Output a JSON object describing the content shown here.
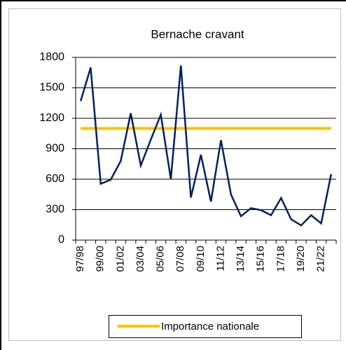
{
  "chart_data": {
    "type": "line",
    "title": "Bernache cravant",
    "categories": [
      "97/98",
      null,
      "99/00",
      null,
      "01/02",
      null,
      "03/04",
      null,
      "05/06",
      null,
      "07/08",
      null,
      "09/10",
      null,
      "11/12",
      null,
      "13/14",
      null,
      "15/16",
      null,
      "17/18",
      null,
      "19/20",
      null,
      "21/22",
      null
    ],
    "series": [
      {
        "color": "#002060",
        "values": [
          1370,
          1700,
          555,
          595,
          780,
          1250,
          735,
          990,
          1235,
          600,
          1720,
          420,
          840,
          380,
          985,
          450,
          235,
          315,
          295,
          245,
          415,
          205,
          145,
          245,
          165,
          650
        ]
      },
      {
        "name": "Importance nationale",
        "color": "#FFC000",
        "values": [
          1100,
          1100,
          1100,
          1100,
          1100,
          1100,
          1100,
          1100,
          1100,
          1100,
          1100,
          1100,
          1100,
          1100,
          1100,
          1100,
          1100,
          1100,
          1100,
          1100,
          1100,
          1100,
          1100,
          1100,
          1100,
          1100
        ]
      }
    ],
    "ylim": [
      0,
      1800
    ],
    "yticks": [
      0,
      300,
      600,
      900,
      1200,
      1500,
      1800
    ],
    "grid": true,
    "legend": "bottom"
  }
}
